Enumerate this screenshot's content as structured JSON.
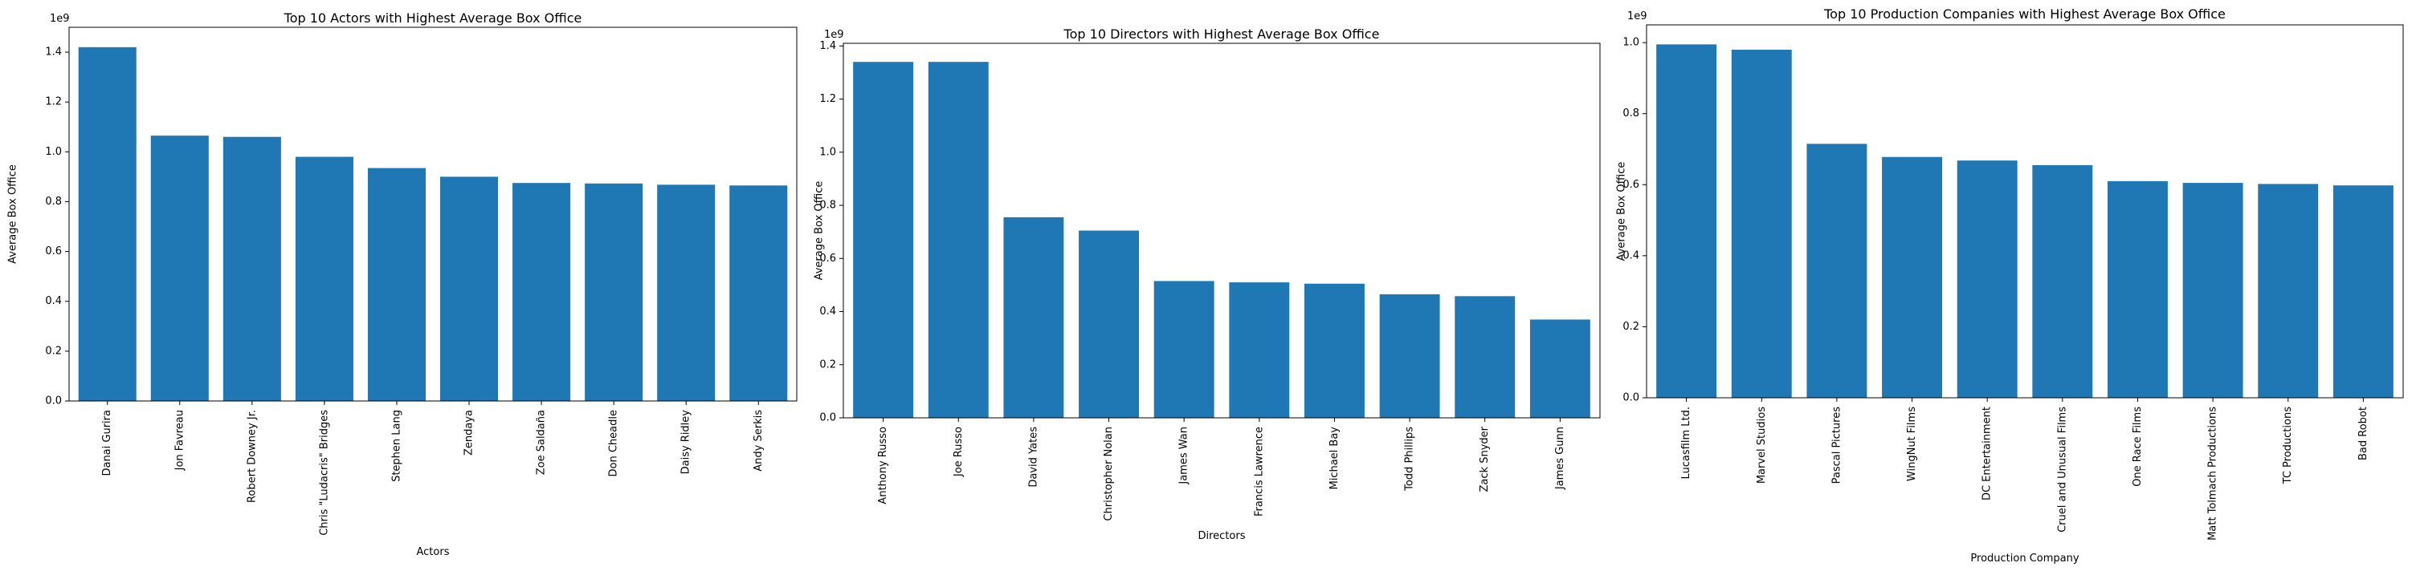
{
  "chart_data": [
    {
      "type": "bar",
      "title": "Top 10 Actors with Highest Average Box Office",
      "xlabel": "Actors",
      "ylabel": "Average Box Office",
      "offset_text": "1e9",
      "ylim": [
        0,
        1.5
      ],
      "yticks": [
        "0.0",
        "0.2",
        "0.4",
        "0.6",
        "0.8",
        "1.0",
        "1.2",
        "1.4"
      ],
      "ytick_values": [
        0,
        0.2,
        0.4,
        0.6,
        0.8,
        1.0,
        1.2,
        1.4
      ],
      "categories": [
        "Danai Gurira",
        "Jon Favreau",
        "Robert Downey Jr.",
        "Chris \"Ludacris\" Bridges",
        "Stephen Lang",
        "Zendaya",
        "Zoe Saldaña",
        "Don Cheadle",
        "Daisy Ridley",
        "Andy Serkis"
      ],
      "values": [
        1.42,
        1.065,
        1.06,
        0.98,
        0.935,
        0.9,
        0.875,
        0.873,
        0.868,
        0.865
      ],
      "bar_color": "#1f77b4",
      "grid": false
    },
    {
      "type": "bar",
      "title": "Top 10 Directors with Highest Average Box Office",
      "xlabel": "Directors",
      "ylabel": "Average Box Office",
      "offset_text": "1e9",
      "ylim": [
        0,
        1.41
      ],
      "yticks": [
        "0.0",
        "0.2",
        "0.4",
        "0.6",
        "0.8",
        "1.0",
        "1.2",
        "1.4"
      ],
      "ytick_values": [
        0,
        0.2,
        0.4,
        0.6,
        0.8,
        1.0,
        1.2,
        1.4
      ],
      "categories": [
        "Anthony Russo",
        "Joe Russo",
        "David Yates",
        "Christopher Nolan",
        "James Wan",
        "Francis Lawrence",
        "Michael Bay",
        "Todd Phillips",
        "Zack Snyder",
        "James Gunn"
      ],
      "values": [
        1.34,
        1.34,
        0.755,
        0.705,
        0.515,
        0.51,
        0.505,
        0.465,
        0.458,
        0.37
      ],
      "bar_color": "#1f77b4",
      "grid": false
    },
    {
      "type": "bar",
      "title": "Top 10 Production Companies with Highest Average Box Office",
      "xlabel": "Production Company",
      "ylabel": "Average Box Office",
      "offset_text": "1e9",
      "ylim": [
        0,
        1.05
      ],
      "yticks": [
        "0.0",
        "0.2",
        "0.4",
        "0.6",
        "0.8",
        "1.0"
      ],
      "ytick_values": [
        0,
        0.2,
        0.4,
        0.6,
        0.8,
        1.0
      ],
      "categories": [
        "Lucasfilm Ltd.",
        "Marvel Studios",
        "Pascal Pictures",
        "WingNut Films",
        "DC Entertainment",
        "Cruel and Unusual Films",
        "One Race Films",
        "Matt Tolmach Productions",
        "TC Productions",
        "Bad Robot"
      ],
      "values": [
        0.995,
        0.98,
        0.715,
        0.678,
        0.668,
        0.655,
        0.61,
        0.605,
        0.602,
        0.598
      ],
      "bar_color": "#1f77b4",
      "grid": false
    }
  ]
}
